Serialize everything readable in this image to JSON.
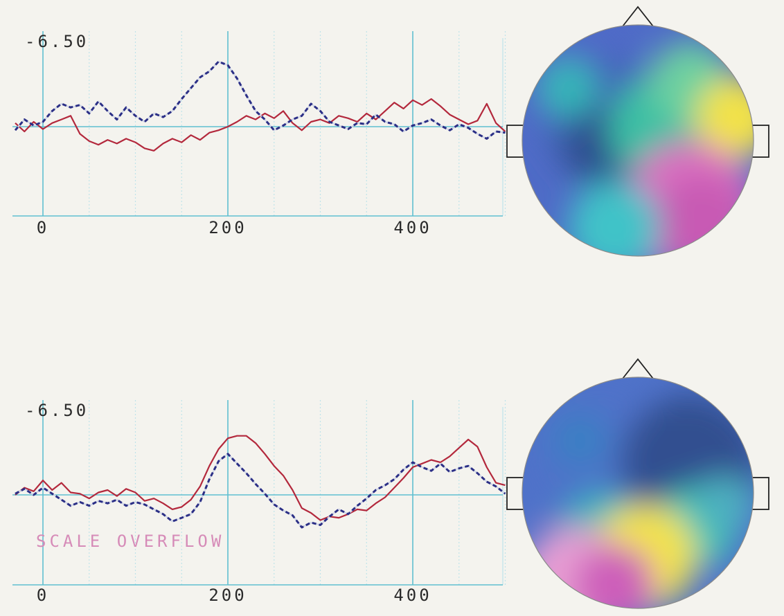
{
  "colors": {
    "background": "#f4f3ee",
    "grid_major": "#5fbfd0",
    "grid_minor": "#bfe3ea",
    "series_red": "#b3283c",
    "series_blue": "#2b2f86"
  },
  "chart_data": [
    {
      "type": "line",
      "y_label": "-6.50",
      "x_ticks": [
        0,
        200,
        400
      ],
      "xlim": [
        0,
        500
      ],
      "ylim": [
        -3.25,
        6.5
      ],
      "annotation": "",
      "series": [
        {
          "style": "solid",
          "color": "#b3283c",
          "x": [
            -30,
            -20,
            -10,
            0,
            10,
            20,
            30,
            40,
            50,
            60,
            70,
            80,
            90,
            100,
            110,
            120,
            130,
            140,
            150,
            160,
            170,
            180,
            190,
            200,
            210,
            220,
            230,
            240,
            250,
            260,
            270,
            280,
            290,
            300,
            310,
            320,
            330,
            340,
            350,
            360,
            370,
            380,
            390,
            400,
            410,
            420,
            430,
            440,
            450,
            460,
            470,
            480,
            490,
            500
          ],
          "y": [
            0.3,
            -0.4,
            0.4,
            -0.2,
            0.3,
            0.6,
            0.9,
            -0.6,
            -1.2,
            -1.5,
            -1.1,
            -1.4,
            -1.0,
            -1.3,
            -1.8,
            -2.0,
            -1.4,
            -1.0,
            -1.3,
            -0.7,
            -1.1,
            -0.5,
            -0.3,
            0.0,
            0.4,
            0.9,
            0.6,
            1.1,
            0.7,
            1.3,
            0.3,
            -0.3,
            0.4,
            0.6,
            0.3,
            0.9,
            0.7,
            0.4,
            1.1,
            0.6,
            1.3,
            2.0,
            1.5,
            2.2,
            1.8,
            2.3,
            1.7,
            1.0,
            0.6,
            0.2,
            0.5,
            1.9,
            0.3,
            -0.4
          ]
        },
        {
          "style": "dashed",
          "color": "#2b2f86",
          "x": [
            -30,
            -20,
            -10,
            0,
            10,
            20,
            30,
            40,
            50,
            60,
            70,
            80,
            90,
            100,
            110,
            120,
            130,
            140,
            150,
            160,
            170,
            180,
            190,
            200,
            210,
            220,
            230,
            240,
            250,
            260,
            270,
            280,
            290,
            300,
            310,
            320,
            330,
            340,
            350,
            360,
            370,
            380,
            390,
            400,
            410,
            420,
            430,
            440,
            450,
            460,
            470,
            480,
            490,
            500
          ],
          "y": [
            -0.3,
            0.6,
            0.1,
            0.4,
            1.3,
            1.9,
            1.6,
            1.8,
            1.1,
            2.1,
            1.3,
            0.6,
            1.6,
            0.9,
            0.4,
            1.1,
            0.8,
            1.3,
            2.3,
            3.2,
            4.1,
            4.6,
            5.4,
            5.1,
            4.0,
            2.6,
            1.3,
            0.6,
            -0.3,
            0.1,
            0.6,
            0.9,
            1.9,
            1.3,
            0.4,
            0.1,
            -0.2,
            0.3,
            0.2,
            1.0,
            0.4,
            0.2,
            -0.4,
            0.1,
            0.3,
            0.6,
            0.1,
            -0.3,
            0.2,
            -0.1,
            -0.6,
            -1.0,
            -0.4,
            -0.5
          ]
        }
      ]
    },
    {
      "type": "line",
      "y_label": "-6.50",
      "x_ticks": [
        0,
        200,
        400
      ],
      "xlim": [
        0,
        500
      ],
      "ylim": [
        -3.25,
        6.5
      ],
      "annotation": "SCALE OVERFLOW",
      "series": [
        {
          "style": "solid",
          "color": "#b3283c",
          "x": [
            -30,
            -20,
            -10,
            0,
            10,
            20,
            30,
            40,
            50,
            60,
            70,
            80,
            90,
            100,
            110,
            120,
            130,
            140,
            150,
            160,
            170,
            180,
            190,
            200,
            210,
            220,
            230,
            240,
            250,
            260,
            270,
            280,
            290,
            300,
            310,
            320,
            330,
            340,
            350,
            360,
            370,
            380,
            390,
            400,
            410,
            420,
            430,
            440,
            450,
            460,
            470,
            480,
            490,
            500
          ],
          "y": [
            0.0,
            0.6,
            0.3,
            1.2,
            0.4,
            1.0,
            0.2,
            0.1,
            -0.3,
            0.2,
            0.4,
            -0.1,
            0.5,
            0.2,
            -0.5,
            -0.3,
            -0.7,
            -1.2,
            -1.0,
            -0.4,
            0.7,
            2.4,
            3.8,
            4.7,
            4.9,
            4.9,
            4.3,
            3.4,
            2.4,
            1.6,
            0.4,
            -1.1,
            -1.5,
            -2.1,
            -1.8,
            -1.9,
            -1.6,
            -1.2,
            -1.3,
            -0.7,
            -0.2,
            0.6,
            1.4,
            2.3,
            2.6,
            2.9,
            2.7,
            3.2,
            3.9,
            4.6,
            4.0,
            2.3,
            1.0,
            0.8
          ]
        },
        {
          "style": "dashed",
          "color": "#2b2f86",
          "x": [
            -30,
            -20,
            -10,
            0,
            10,
            20,
            30,
            40,
            50,
            60,
            70,
            80,
            90,
            100,
            110,
            120,
            130,
            140,
            150,
            160,
            170,
            180,
            190,
            200,
            210,
            220,
            230,
            240,
            250,
            260,
            270,
            280,
            290,
            300,
            310,
            320,
            330,
            340,
            350,
            360,
            370,
            380,
            390,
            400,
            410,
            420,
            430,
            440,
            450,
            460,
            470,
            480,
            490,
            500
          ],
          "y": [
            0.1,
            0.5,
            0.0,
            0.6,
            0.1,
            -0.4,
            -0.9,
            -0.6,
            -0.9,
            -0.5,
            -0.7,
            -0.4,
            -0.9,
            -0.6,
            -0.8,
            -1.2,
            -1.6,
            -2.2,
            -1.9,
            -1.6,
            -0.6,
            1.3,
            2.8,
            3.4,
            2.6,
            1.8,
            0.9,
            0.1,
            -0.8,
            -1.3,
            -1.7,
            -2.7,
            -2.3,
            -2.5,
            -1.8,
            -1.2,
            -1.6,
            -0.9,
            -0.3,
            0.4,
            0.8,
            1.3,
            2.1,
            2.7,
            2.3,
            2.0,
            2.6,
            1.9,
            2.2,
            2.4,
            1.8,
            1.1,
            0.7,
            0.1
          ]
        }
      ]
    }
  ],
  "head_maps": [
    {
      "nose": "triangle-up",
      "ears": true,
      "blobs": [
        {
          "color": "#4f6bc7",
          "intensity": 1.0
        },
        {
          "color": "#4267b8",
          "intensity": 1.0
        },
        {
          "color": "#2e4f8f",
          "intensity": 1.0
        },
        {
          "color": "#35b6b8",
          "intensity": 1.0
        },
        {
          "color": "#3bbfa4",
          "intensity": 1.0
        },
        {
          "color": "#6cd0a0",
          "intensity": 1.0
        },
        {
          "color": "#f2e24a",
          "intensity": 1.0
        },
        {
          "color": "#d96fc0",
          "intensity": 1.0
        },
        {
          "color": "#c85ab4",
          "intensity": 1.0
        },
        {
          "color": "#41c3c8",
          "intensity": 1.0
        }
      ]
    },
    {
      "nose": "triangle-up",
      "ears": true,
      "blobs": [
        {
          "color": "#4f72c9",
          "intensity": 1.0
        },
        {
          "color": "#304f90",
          "intensity": 1.0
        },
        {
          "color": "#3a7fc4",
          "intensity": 1.0
        },
        {
          "color": "#2fb5bc",
          "intensity": 1.0
        },
        {
          "color": "#43c7b2",
          "intensity": 1.0
        },
        {
          "color": "#f3e24c",
          "intensity": 1.0
        },
        {
          "color": "#e79ed3",
          "intensity": 1.0
        },
        {
          "color": "#cd5fba",
          "intensity": 1.0
        },
        {
          "color": "#4db0c0",
          "intensity": 1.0
        }
      ]
    }
  ]
}
